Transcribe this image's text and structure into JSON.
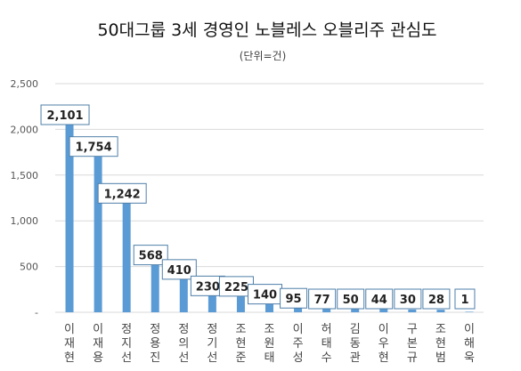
{
  "chart_data": {
    "type": "bar",
    "title": "50대그룹 3세 경영인 노블레스 오블리주 관심도",
    "subtitle": "(단위=건)",
    "categories": [
      "이재현",
      "이재용",
      "정지선",
      "정용진",
      "정의선",
      "정기선",
      "조현준",
      "조원태",
      "이주성",
      "허태수",
      "김동관",
      "이우현",
      "구본규",
      "조현범",
      "이해욱"
    ],
    "values": [
      2101,
      1754,
      1242,
      568,
      410,
      230,
      225,
      140,
      95,
      77,
      50,
      44,
      30,
      28,
      1
    ],
    "data_labels": [
      "2,101",
      "1,754",
      "1,242",
      "568",
      "410",
      "230",
      "225",
      "140",
      "95",
      "77",
      "50",
      "44",
      "30",
      "28",
      "1"
    ],
    "y_ticks": [
      0,
      500,
      1000,
      1500,
      2000,
      2500
    ],
    "y_tick_labels": [
      "-",
      "500",
      "1,000",
      "1,500",
      "2,000",
      "2,500"
    ],
    "ylim": [
      0,
      2500
    ],
    "grid": true,
    "legend": "none",
    "colors": {
      "bar": "#5b9bd5",
      "grid": "#d9d9d9",
      "label_border": "#4f7fa8"
    }
  }
}
